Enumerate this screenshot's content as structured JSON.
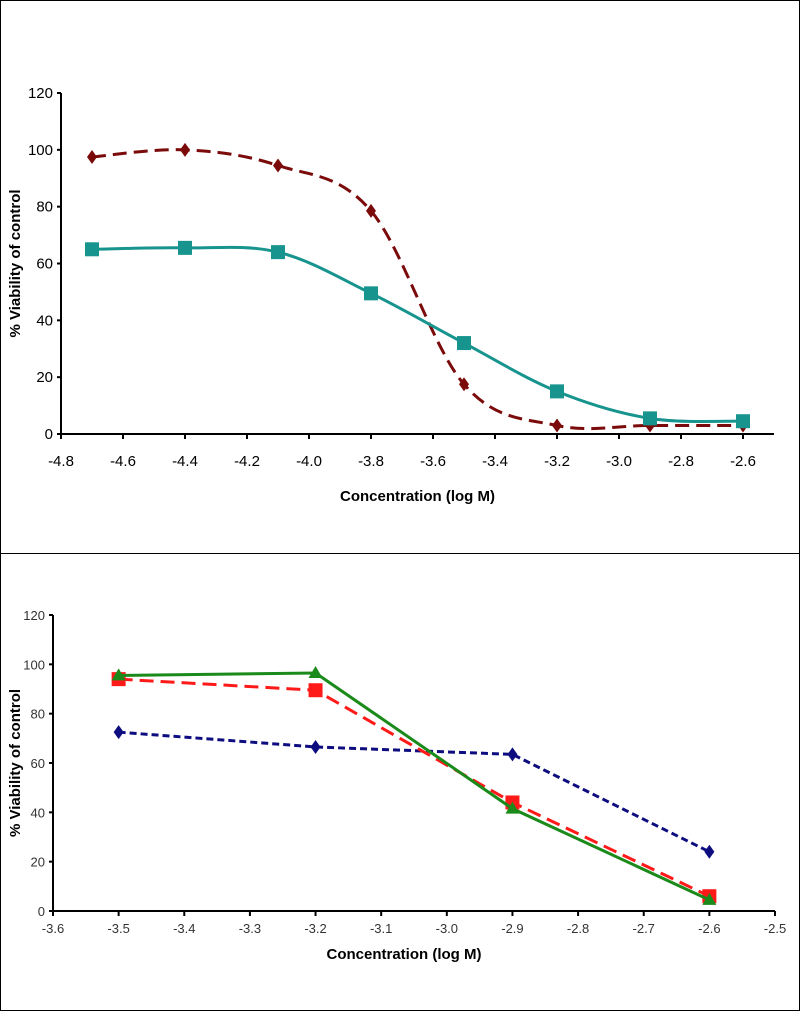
{
  "chart_data": [
    {
      "type": "line",
      "title": "",
      "xlabel": "Concentration (log M)",
      "ylabel": "% Viability of control",
      "xlim": [
        -4.8,
        -2.5
      ],
      "ylim": [
        0,
        120
      ],
      "xticks": [
        -4.8,
        -4.6,
        -4.4,
        -4.2,
        -4.0,
        -3.8,
        -3.6,
        -3.4,
        -3.2,
        -3.0,
        -2.8,
        -2.6
      ],
      "xtick_labels": [
        "-4.8",
        "-4.6",
        "-4.4",
        "-4.2",
        "-4.0",
        "-3.8",
        "-3.6",
        "-3.4",
        "-3.2",
        "-3.0",
        "-2.8",
        "-2.6"
      ],
      "yticks": [
        0,
        20,
        40,
        60,
        80,
        100,
        120
      ],
      "ytick_labels": [
        "0",
        "20",
        "40",
        "60",
        "80",
        "100",
        "120"
      ],
      "grid": false,
      "x": [
        -4.7,
        -4.4,
        -4.1,
        -3.8,
        -3.5,
        -3.2,
        -2.9,
        -2.6
      ],
      "series": [
        {
          "name": "series-1",
          "color": "#7b0a0a",
          "dash": "dashed",
          "marker": "diamond",
          "curved": true,
          "values": [
            97.5,
            100,
            94.5,
            78.5,
            17.5,
            3,
            3,
            3
          ]
        },
        {
          "name": "series-2",
          "color": "#18948f",
          "dash": "solid",
          "marker": "square",
          "curved": true,
          "values": [
            65,
            65.5,
            64,
            49.5,
            32,
            15,
            5.5,
            4.5
          ]
        }
      ]
    },
    {
      "type": "line",
      "title": "",
      "xlabel": "Concentration (log M)",
      "ylabel": "% Viability of control",
      "xlim": [
        -3.6,
        -2.5
      ],
      "ylim": [
        0,
        120
      ],
      "xticks": [
        -3.6,
        -3.5,
        -3.4,
        -3.3,
        -3.2,
        -3.1,
        -3.0,
        -2.9,
        -2.8,
        -2.7,
        -2.6,
        -2.5
      ],
      "xtick_labels": [
        "-3.6",
        "-3.5",
        "-3.4",
        "-3.3",
        "-3.2",
        "-3.1",
        "-3.0",
        "-2.9",
        "-2.8",
        "-2.7",
        "-2.6",
        "-2.5"
      ],
      "yticks": [
        0,
        20,
        40,
        60,
        80,
        100,
        120
      ],
      "ytick_labels": [
        "0",
        "20",
        "40",
        "60",
        "80",
        "100",
        "120"
      ],
      "grid": false,
      "x": [
        -3.5,
        -3.2,
        -2.9,
        -2.6
      ],
      "series": [
        {
          "name": "series-1",
          "color": "#0d0d80",
          "dash": "dotted",
          "marker": "diamond",
          "curved": false,
          "values": [
            72.5,
            66.5,
            63.5,
            24
          ]
        },
        {
          "name": "series-2",
          "color": "#ff1a1a",
          "dash": "dashed",
          "marker": "square",
          "curved": false,
          "values": [
            94,
            89.5,
            44,
            6
          ]
        },
        {
          "name": "series-3",
          "color": "#1a8a1a",
          "dash": "solid",
          "marker": "triangle",
          "curved": false,
          "values": [
            95.5,
            96.5,
            41.5,
            4.5
          ]
        }
      ]
    }
  ]
}
